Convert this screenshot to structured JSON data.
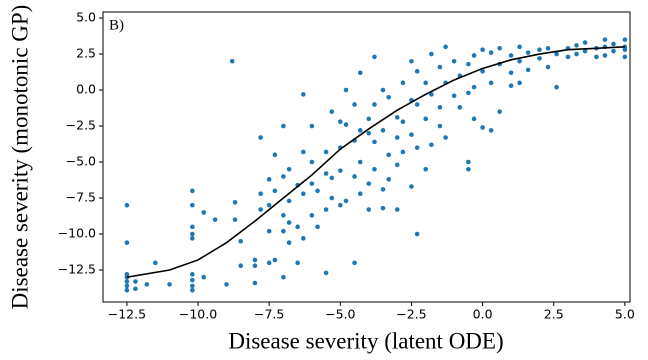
{
  "chart_data": {
    "type": "scatter",
    "annotation": "B)",
    "x_label": "Disease severity (latent ODE)",
    "y_label": "Disease severity (monotonic GP)",
    "xlim": [
      -13.34,
      5.18
    ],
    "ylim": [
      -14.72,
      5.42
    ],
    "xticks": [
      {
        "value": -12.5,
        "label": "−12.5"
      },
      {
        "value": -10,
        "label": "−10.0"
      },
      {
        "value": -7.5,
        "label": "−7.5"
      },
      {
        "value": -5,
        "label": "−5.0"
      },
      {
        "value": -2.5,
        "label": "−2.5"
      },
      {
        "value": 0,
        "label": "0.0"
      },
      2.5,
      {
        "value": 5,
        "label": "5.0"
      }
    ],
    "yticks": [
      {
        "value": -12.5,
        "label": "−12.5"
      },
      {
        "value": -10,
        "label": "−10.0"
      },
      {
        "value": -7.5,
        "label": "−7.5"
      },
      {
        "value": -5,
        "label": "−5.0"
      },
      {
        "value": -2.5,
        "label": "−2.5"
      },
      {
        "value": 0,
        "label": "0.0"
      },
      2.5,
      {
        "value": 5,
        "label": "5.0"
      }
    ],
    "points": {
      "color": "#1f77b4",
      "x": [
        -12.5,
        -12.5,
        -12.5,
        -12.5,
        -12.5,
        -12.5,
        -12.5,
        -12.2,
        -12.2,
        -11.8,
        -11.5,
        -11,
        -10.2,
        -10.2,
        -10.2,
        -10.2,
        -10.2,
        -10.2,
        -10.2,
        -10.2,
        -10.2,
        -9.8,
        -9.8,
        -9.4,
        -9,
        -8.8,
        -8.7,
        -8.7,
        -8.5,
        -8.5,
        -8,
        -8,
        -8,
        -7.8,
        -7.8,
        -7.8,
        -7.5,
        -7.5,
        -7.5,
        -7.5,
        -7.3,
        -7.3,
        -7.3,
        -7,
        -7,
        -7,
        -7,
        -7,
        -6.8,
        -6.8,
        -6.8,
        -6.8,
        -6.5,
        -6.5,
        -6.5,
        -6.3,
        -6.3,
        -6.3,
        -6.3,
        -6,
        -6,
        -6,
        -6,
        -5.8,
        -5.8,
        -5.5,
        -5.5,
        -5.5,
        -5.5,
        -5.3,
        -5.3,
        -5.3,
        -5,
        -5,
        -5,
        -5,
        -4.8,
        -4.8,
        -4.8,
        -4.5,
        -4.5,
        -4.5,
        -4.5,
        -4.3,
        -4.3,
        -4.3,
        -4.3,
        -4,
        -4,
        -4,
        -4,
        -3.8,
        -3.8,
        -3.8,
        -3.8,
        -3.5,
        -3.5,
        -3.5,
        -3.5,
        -3.3,
        -3.3,
        -3.3,
        -3,
        -3,
        -3,
        -3,
        -2.8,
        -2.8,
        -2.8,
        -2.5,
        -2.5,
        -2.5,
        -2.5,
        -2.3,
        -2.3,
        -2.3,
        -2.3,
        -2,
        -2,
        -2,
        -1.8,
        -1.8,
        -1.8,
        -1.5,
        -1.5,
        -1.5,
        -1.3,
        -1.3,
        -1.3,
        -1,
        -1,
        -0.8,
        -0.8,
        -0.5,
        -0.5,
        -0.5,
        -0.5,
        -0.3,
        -0.3,
        -0.3,
        0,
        0,
        0,
        0.3,
        0.3,
        0.3,
        0.6,
        0.6,
        0.6,
        1,
        1,
        1,
        1.3,
        1.3,
        1.3,
        1.6,
        1.6,
        2,
        2,
        2.3,
        2.3,
        2.6,
        2.6,
        3,
        3,
        3.3,
        3.3,
        3.6,
        3.6,
        4,
        4,
        4.3,
        4.3,
        4.3,
        4.6,
        4.6,
        5,
        5,
        5,
        5
      ],
      "y": [
        -8,
        -10.6,
        -12.8,
        -13,
        -13.3,
        -13.6,
        -13.9,
        -13.3,
        -13.8,
        -13.5,
        -12,
        -13.5,
        -7,
        -8,
        -9.5,
        -10,
        -10.3,
        -12.8,
        -13.2,
        -13.6,
        -13.9,
        -8.5,
        -13,
        -9,
        -13.5,
        2,
        -7.8,
        -9,
        -12.2,
        -10.5,
        -12.2,
        -13.4,
        -11.8,
        -3.3,
        -7.2,
        -8.3,
        -6.2,
        -8,
        -9.8,
        -12,
        -4.5,
        -7,
        -11.8,
        -2.5,
        -6,
        -8.7,
        -9.8,
        -13,
        -5.5,
        -7.7,
        -9.2,
        -10.6,
        -6.6,
        -9.5,
        -12,
        -0.3,
        -4.3,
        -7.2,
        -10.3,
        -2.5,
        -5,
        -6.5,
        -8.7,
        -7,
        -9.5,
        -4.3,
        -5.8,
        -8.3,
        -12.7,
        -1.5,
        -6.1,
        -7.5,
        -2.2,
        -4,
        -5.6,
        -8,
        0,
        -2.4,
        -7.7,
        -1,
        -3.5,
        -6,
        -12,
        1.2,
        -2.8,
        -5,
        -7.2,
        -2,
        -3,
        -6.5,
        -8.3,
        2.3,
        -1,
        -3.6,
        -5.5,
        0,
        -2.8,
        -6.9,
        -8.2,
        -0.5,
        -4.5,
        -6.2,
        -1.9,
        -3.3,
        -5.2,
        -8.3,
        0.5,
        -2.2,
        -4.3,
        2,
        -0.7,
        -3.1,
        -6.7,
        1.3,
        -1,
        -4,
        -10,
        0.5,
        -2,
        -5.5,
        2.5,
        -0.3,
        -3.8,
        1.6,
        -1.2,
        -2.5,
        3,
        0.5,
        -3.3,
        2,
        -0.4,
        1,
        -1.2,
        1.8,
        -0.2,
        -5,
        -5.5,
        2.4,
        0.2,
        -2,
        2.8,
        1.3,
        -2.6,
        2.6,
        0.5,
        -2.8,
        2.9,
        1.8,
        -1.5,
        2.4,
        1.2,
        0.3,
        3,
        2,
        0.5,
        2.6,
        1.4,
        2.8,
        2.2,
        2.9,
        1.6,
        2.5,
        0.2,
        2.9,
        2.3,
        3.1,
        2.5,
        3.3,
        2.7,
        2.3,
        2.9,
        3.5,
        3,
        2.4,
        3.2,
        2.7,
        3.5,
        3,
        2.8,
        2.3
      ]
    },
    "curve": {
      "color": "#000000",
      "x": [
        -12.5,
        -11,
        -10,
        -9,
        -8,
        -7,
        -6,
        -5,
        -4,
        -3,
        -2,
        -1,
        0,
        1,
        2,
        3,
        4,
        5
      ],
      "y": [
        -13,
        -12.5,
        -11.8,
        -10.6,
        -9.1,
        -7.5,
        -5.9,
        -4.1,
        -2.7,
        -1.4,
        -0.3,
        0.7,
        1.5,
        2.1,
        2.5,
        2.8,
        2.9,
        3.0
      ]
    }
  }
}
